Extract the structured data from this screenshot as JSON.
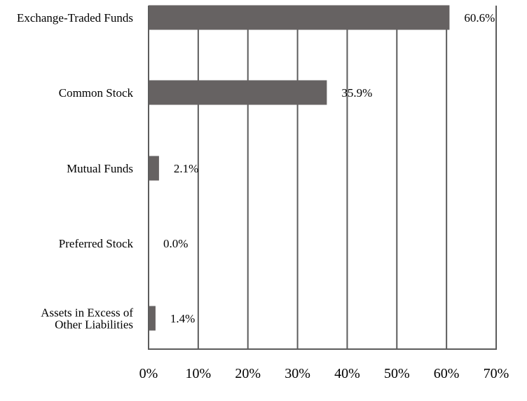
{
  "chart_data": {
    "type": "bar",
    "orientation": "horizontal",
    "categories": [
      [
        "Exchange-Traded Funds"
      ],
      [
        "Common Stock"
      ],
      [
        "Mutual Funds"
      ],
      [
        "Preferred Stock"
      ],
      [
        "Assets in Excess of",
        "Other Liabilities"
      ]
    ],
    "values": [
      60.6,
      35.9,
      2.1,
      0.0,
      1.4
    ],
    "value_labels": [
      "60.6%",
      "35.9%",
      "2.1%",
      "0.0%",
      "1.4%"
    ],
    "x_ticks": [
      "0%",
      "10%",
      "20%",
      "30%",
      "40%",
      "50%",
      "60%",
      "70%"
    ],
    "xlim": [
      0,
      70
    ],
    "grid": "vertical",
    "bar_color": "#666262",
    "axis_color": "#5c5c5c",
    "title": "",
    "xlabel": "",
    "ylabel": ""
  }
}
